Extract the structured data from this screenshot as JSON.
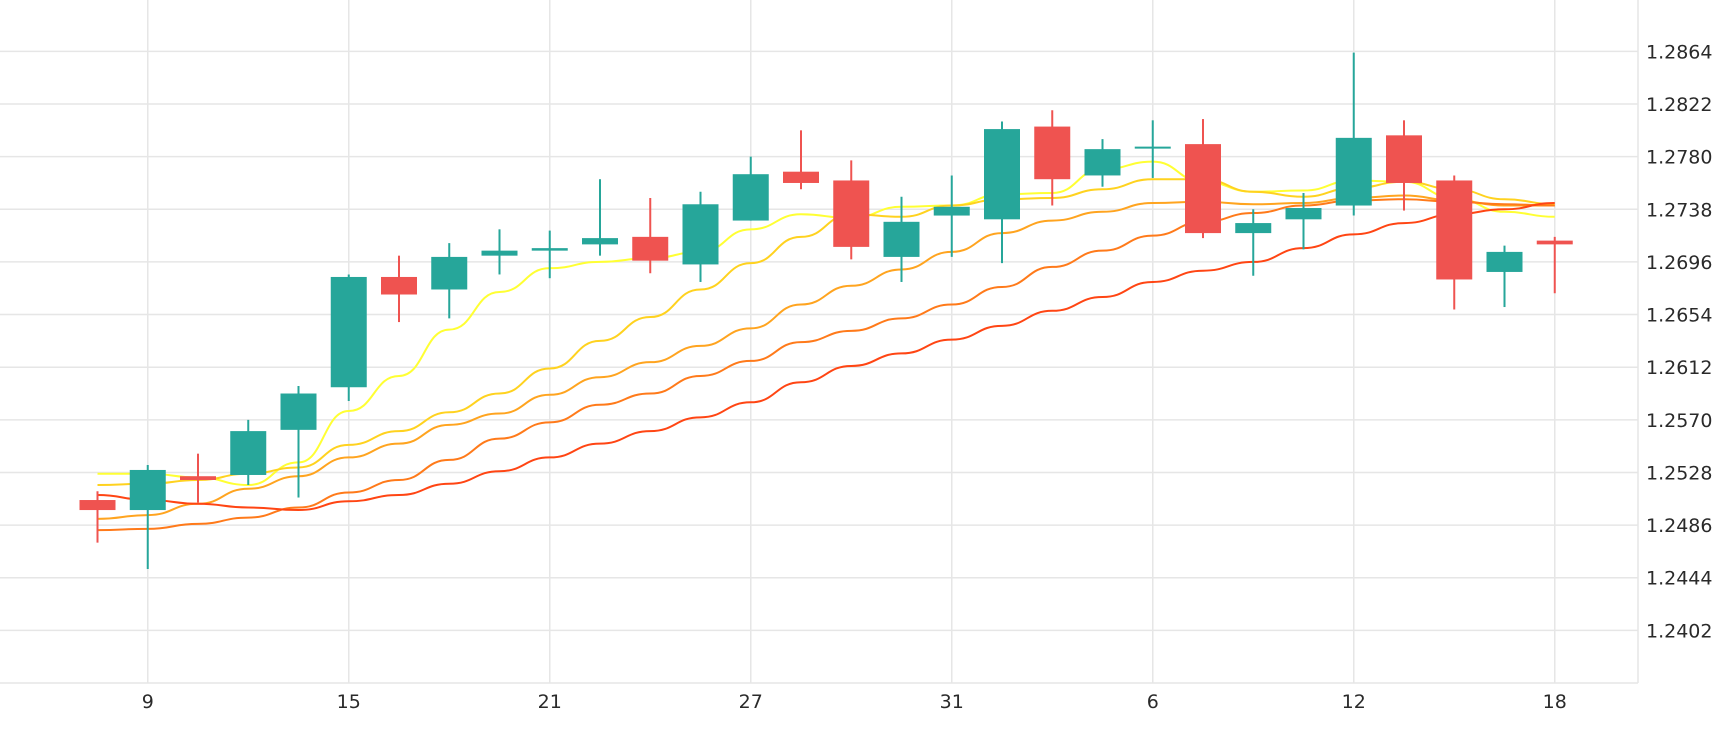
{
  "chart_data": {
    "type": "candlestick",
    "colors": {
      "up": "#26a69a",
      "down": "#ef5350",
      "grid": "#e6e6e6",
      "ma_lines": [
        "#ffff33",
        "#ffd21f",
        "#ffa41f",
        "#ff7a1a",
        "#ff4513"
      ]
    },
    "ylim": [
      1.236,
      1.2905
    ],
    "y_ticks": [
      "1.2402",
      "1.2444",
      "1.2486",
      "1.2528",
      "1.2570",
      "1.2612",
      "1.2654",
      "1.2696",
      "1.2738",
      "1.2780",
      "1.2822",
      "1.2864"
    ],
    "x_ticks": [
      {
        "label": "9",
        "index": 1
      },
      {
        "label": "15",
        "index": 5
      },
      {
        "label": "21",
        "index": 9
      },
      {
        "label": "27",
        "index": 13
      },
      {
        "label": "31",
        "index": 17
      },
      {
        "label": "6",
        "index": 21
      },
      {
        "label": "12",
        "index": 25
      },
      {
        "label": "18",
        "index": 29
      }
    ],
    "candles": [
      {
        "o": 1.2506,
        "h": 1.2513,
        "l": 1.2472,
        "c": 1.2498
      },
      {
        "o": 1.2498,
        "h": 1.2534,
        "l": 1.2451,
        "c": 1.253
      },
      {
        "o": 1.2525,
        "h": 1.2543,
        "l": 1.2504,
        "c": 1.2522
      },
      {
        "o": 1.2526,
        "h": 1.257,
        "l": 1.2518,
        "c": 1.2561
      },
      {
        "o": 1.2562,
        "h": 1.2597,
        "l": 1.2508,
        "c": 1.2591
      },
      {
        "o": 1.2596,
        "h": 1.2686,
        "l": 1.2585,
        "c": 1.2684
      },
      {
        "o": 1.2684,
        "h": 1.2701,
        "l": 1.2648,
        "c": 1.267
      },
      {
        "o": 1.2674,
        "h": 1.2711,
        "l": 1.2651,
        "c": 1.27
      },
      {
        "o": 1.2701,
        "h": 1.2722,
        "l": 1.2686,
        "c": 1.2705
      },
      {
        "o": 1.2705,
        "h": 1.2721,
        "l": 1.2683,
        "c": 1.2707
      },
      {
        "o": 1.271,
        "h": 1.2762,
        "l": 1.2701,
        "c": 1.2715
      },
      {
        "o": 1.2716,
        "h": 1.2747,
        "l": 1.2687,
        "c": 1.2697
      },
      {
        "o": 1.2694,
        "h": 1.2752,
        "l": 1.268,
        "c": 1.2742
      },
      {
        "o": 1.2729,
        "h": 1.278,
        "l": 1.2729,
        "c": 1.2766
      },
      {
        "o": 1.2768,
        "h": 1.2801,
        "l": 1.2754,
        "c": 1.2759
      },
      {
        "o": 1.2761,
        "h": 1.2777,
        "l": 1.2698,
        "c": 1.2708
      },
      {
        "o": 1.27,
        "h": 1.2748,
        "l": 1.268,
        "c": 1.2728
      },
      {
        "o": 1.2733,
        "h": 1.2765,
        "l": 1.27,
        "c": 1.274
      },
      {
        "o": 1.273,
        "h": 1.2808,
        "l": 1.2695,
        "c": 1.2802
      },
      {
        "o": 1.2804,
        "h": 1.2817,
        "l": 1.2741,
        "c": 1.2762
      },
      {
        "o": 1.2765,
        "h": 1.2794,
        "l": 1.2756,
        "c": 1.2786
      },
      {
        "o": 1.2787,
        "h": 1.2809,
        "l": 1.2763,
        "c": 1.2788
      },
      {
        "o": 1.279,
        "h": 1.281,
        "l": 1.2715,
        "c": 1.2719
      },
      {
        "o": 1.2719,
        "h": 1.2738,
        "l": 1.2685,
        "c": 1.2727
      },
      {
        "o": 1.273,
        "h": 1.2751,
        "l": 1.2706,
        "c": 1.2739
      },
      {
        "o": 1.2741,
        "h": 1.2863,
        "l": 1.2733,
        "c": 1.2795
      },
      {
        "o": 1.2797,
        "h": 1.2809,
        "l": 1.2737,
        "c": 1.2759
      },
      {
        "o": 1.2761,
        "h": 1.2765,
        "l": 1.2658,
        "c": 1.2682
      },
      {
        "o": 1.2688,
        "h": 1.2709,
        "l": 1.266,
        "c": 1.2704
      },
      {
        "o": 1.2713,
        "h": 1.2716,
        "l": 1.2671,
        "c": 1.271
      }
    ],
    "moving_averages": [
      {
        "values": [
          1.2527,
          1.2527,
          1.2524,
          1.2518,
          1.2536,
          1.2577,
          1.2605,
          1.2642,
          1.2672,
          1.2691,
          1.2696,
          1.2699,
          1.2704,
          1.2722,
          1.2734,
          1.2731,
          1.274,
          1.2741,
          1.275,
          1.2751,
          1.277,
          1.2776,
          1.276,
          1.2752,
          1.2753,
          1.2761,
          1.276,
          1.2747,
          1.2736,
          1.2732
        ]
      },
      {
        "values": [
          1.2518,
          1.2519,
          1.2522,
          1.2527,
          1.2532,
          1.255,
          1.2561,
          1.2576,
          1.2591,
          1.2611,
          1.2633,
          1.2652,
          1.2674,
          1.2695,
          1.2716,
          1.2734,
          1.2732,
          1.2741,
          1.2746,
          1.2747,
          1.2754,
          1.2762,
          1.2762,
          1.2752,
          1.2748,
          1.2755,
          1.276,
          1.2754,
          1.2746,
          1.2742
        ]
      },
      {
        "values": [
          1.2491,
          1.2494,
          1.2503,
          1.2515,
          1.2525,
          1.254,
          1.2551,
          1.2566,
          1.2575,
          1.259,
          1.2604,
          1.2616,
          1.2629,
          1.2643,
          1.2662,
          1.2677,
          1.269,
          1.2704,
          1.2719,
          1.2729,
          1.2736,
          1.2743,
          1.2744,
          1.2742,
          1.2743,
          1.2747,
          1.2749,
          1.2745,
          1.2741,
          1.2741
        ]
      },
      {
        "values": [
          1.2482,
          1.2483,
          1.2487,
          1.2492,
          1.25,
          1.2512,
          1.2522,
          1.2538,
          1.2555,
          1.2568,
          1.2582,
          1.2591,
          1.2605,
          1.2617,
          1.2632,
          1.2641,
          1.2651,
          1.2662,
          1.2676,
          1.2692,
          1.2705,
          1.2717,
          1.2728,
          1.2735,
          1.2741,
          1.2745,
          1.2746,
          1.2744,
          1.2742,
          1.2741
        ]
      },
      {
        "values": [
          1.251,
          1.2506,
          1.2503,
          1.25,
          1.2498,
          1.2505,
          1.251,
          1.2519,
          1.2529,
          1.254,
          1.2551,
          1.2561,
          1.2572,
          1.2584,
          1.26,
          1.2613,
          1.2623,
          1.2634,
          1.2645,
          1.2657,
          1.2668,
          1.268,
          1.2689,
          1.2696,
          1.2707,
          1.2718,
          1.2727,
          1.2734,
          1.2738,
          1.2743
        ]
      }
    ]
  }
}
